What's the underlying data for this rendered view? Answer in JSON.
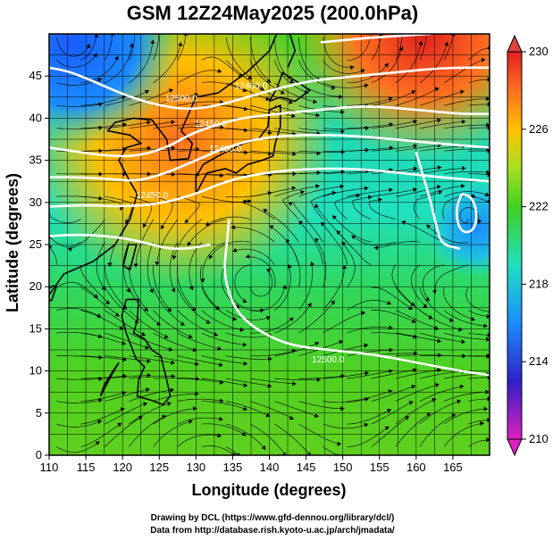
{
  "chart_data": {
    "type": "heatmap",
    "title": "GSM 12Z24May2025 (200.0hPa)",
    "xlabel": "Longitude (degrees)",
    "ylabel": "Latitude  (degrees)",
    "xlim": [
      110,
      170
    ],
    "ylim": [
      0,
      50
    ],
    "x_ticks": [
      110,
      115,
      120,
      125,
      130,
      135,
      140,
      145,
      150,
      155,
      160,
      165
    ],
    "y_ticks": [
      0,
      5,
      10,
      15,
      20,
      25,
      30,
      35,
      40,
      45
    ],
    "grid": true,
    "colorbar": {
      "placement": "right",
      "range": [
        210,
        230
      ],
      "ticks": [
        210,
        214,
        218,
        222,
        226,
        230
      ],
      "colors": [
        {
          "value": 210,
          "color": "#e020c0"
        },
        {
          "value": 213,
          "color": "#3020c8"
        },
        {
          "value": 216,
          "color": "#1a8cff"
        },
        {
          "value": 219,
          "color": "#20e0c0"
        },
        {
          "value": 222,
          "color": "#40d020"
        },
        {
          "value": 224,
          "color": "#a8e020"
        },
        {
          "value": 226,
          "color": "#ffc000"
        },
        {
          "value": 228,
          "color": "#ff7020"
        },
        {
          "value": 230,
          "color": "#e02020"
        }
      ]
    },
    "contour_labels": [
      {
        "text": "12500.0",
        "lon": 128,
        "lat": 42
      },
      {
        "text": "12450.0",
        "lon": 132,
        "lat": 39
      },
      {
        "text": "12400.0",
        "lon": 134,
        "lat": 36
      },
      {
        "text": "12450.0",
        "lon": 124,
        "lat": 30.5
      },
      {
        "text": "12500.0",
        "lon": 148,
        "lat": 11
      },
      {
        "text": "12400.0",
        "lon": 137.5,
        "lat": 43.5
      }
    ],
    "credits": [
      "Drawing by DCL (https://www.gfd-dennou.org/library/dcl/)",
      "Data from http://database.rish.kyoto-u.ac.jp/arch/jmadata/"
    ]
  }
}
